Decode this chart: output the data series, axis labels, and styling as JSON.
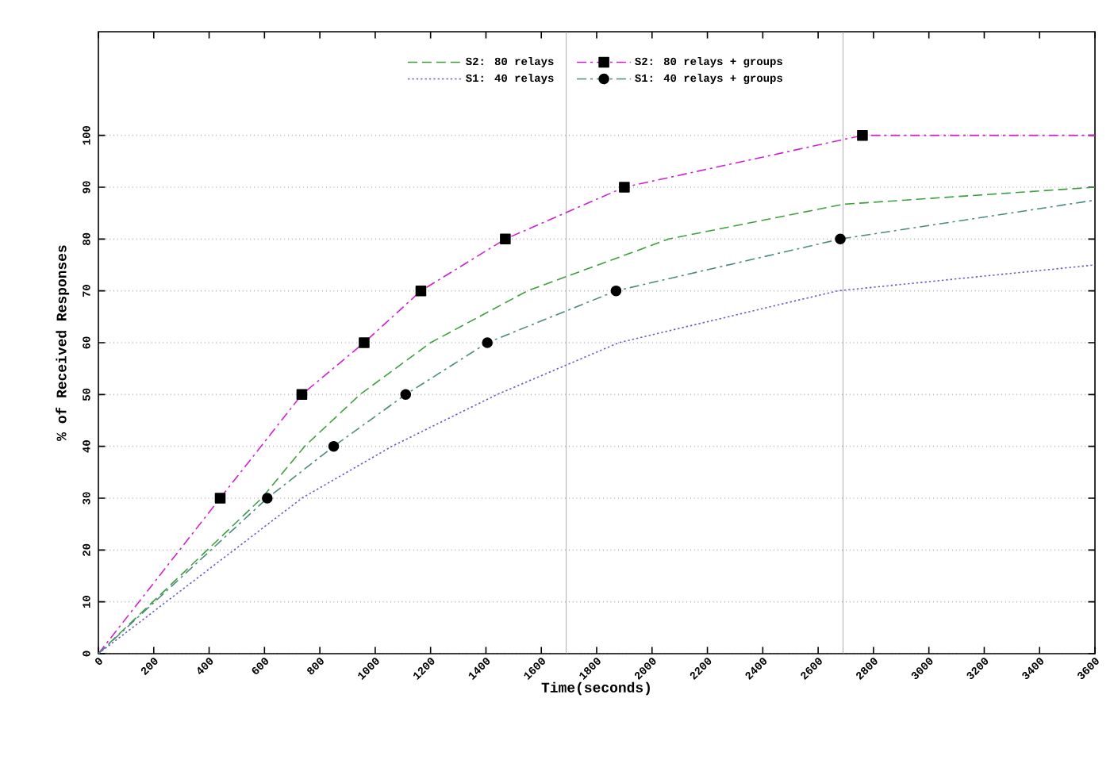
{
  "chart_data": {
    "type": "line",
    "xlabel": "Time(seconds)",
    "ylabel": "% of Received Responses",
    "xlim": [
      0,
      3600
    ],
    "ylim": [
      0,
      120
    ],
    "xticks": [
      0,
      200,
      400,
      600,
      800,
      1000,
      1200,
      1400,
      1600,
      1800,
      2000,
      2200,
      2400,
      2600,
      2800,
      3000,
      3200,
      3400,
      3600
    ],
    "yticks": [
      0,
      10,
      20,
      30,
      40,
      50,
      60,
      70,
      80,
      90,
      100
    ],
    "grid": "y",
    "legend": "top",
    "ref_lines": [
      {
        "axis": "x",
        "value": 1690,
        "color": "#999999"
      },
      {
        "axis": "x",
        "value": 2690,
        "color": "#999999"
      }
    ],
    "series": [
      {
        "name": "S2: 80 relays",
        "color": "#3ca03c",
        "line_style": "dashed",
        "marker": "none",
        "x": [
          0,
          590,
          745,
          945,
          1200,
          1550,
          2060,
          2690,
          3600
        ],
        "values": [
          0,
          30,
          40,
          50,
          60,
          70,
          80,
          86.7,
          90
        ]
      },
      {
        "name": "S2: 80 relays + groups",
        "color": "#d020d0",
        "line_style": "dashdot",
        "marker": "square",
        "x": [
          0,
          440,
          735,
          960,
          1165,
          1470,
          1900,
          2760,
          3600
        ],
        "values": [
          0,
          30,
          50,
          60,
          70,
          80,
          90,
          100,
          100
        ]
      },
      {
        "name": "S1: 40 relays",
        "color": "#6a5acd",
        "line_style": "dotted",
        "marker": "none",
        "x": [
          0,
          735,
          1060,
          1440,
          1880,
          2670,
          3600
        ],
        "values": [
          0,
          30,
          40,
          50,
          60,
          70,
          75
        ]
      },
      {
        "name": "S1: 40 relays + groups",
        "color": "#4a8a80",
        "line_style": "dashdot",
        "marker": "circle",
        "x": [
          0,
          610,
          850,
          1110,
          1405,
          1870,
          2680,
          3600
        ],
        "values": [
          0,
          30,
          40,
          50,
          60,
          70,
          80,
          87.5
        ]
      }
    ]
  }
}
